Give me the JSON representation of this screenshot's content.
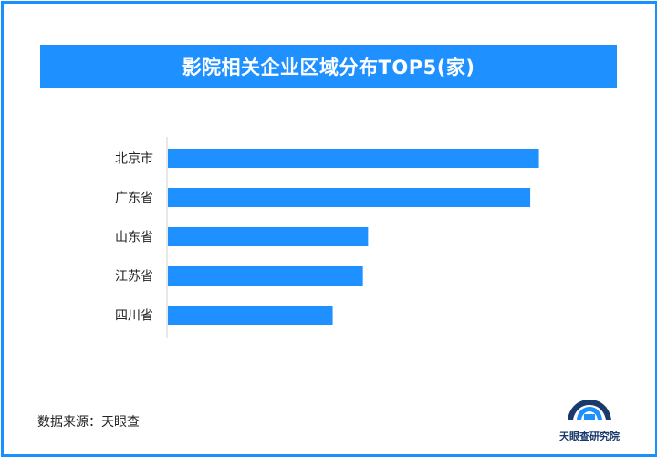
{
  "chart_data": {
    "type": "bar",
    "orientation": "horizontal",
    "title": "影院相关企业区域分布TOP5(家)",
    "categories": [
      "北京市",
      "广东省",
      "山东省",
      "江苏省",
      "四川省"
    ],
    "values": [
      2150,
      2100,
      1160,
      1130,
      955
    ],
    "xlim": [
      0,
      2200
    ],
    "bar_color": "#1e90ff",
    "grid": false,
    "legend": "none"
  },
  "footer": {
    "source": "数据来源：天眼查",
    "logo_text": "天眼查研究院"
  },
  "colors": {
    "accent": "#1e90ff",
    "frame": "#1890ff",
    "logo_dark": "#1a3a6b"
  }
}
